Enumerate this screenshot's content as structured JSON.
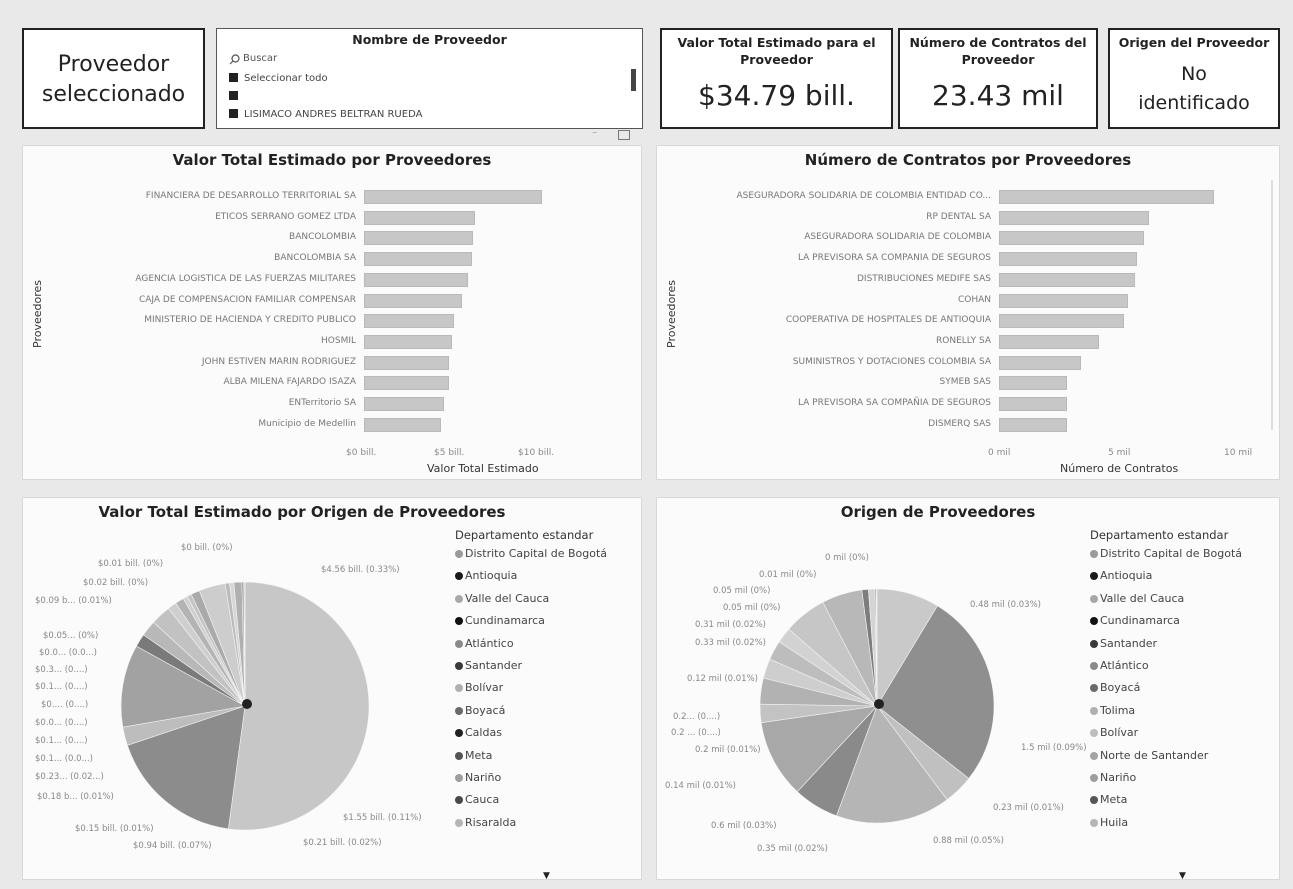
{
  "selected_provider_card": {
    "label": "Proveedor seleccionado"
  },
  "slicer": {
    "title": "Nombre de Proveedor",
    "search_placeholder": "Buscar",
    "select_all": "Seleccionar todo",
    "blank_option": "",
    "provider_option": "LISIMACO ANDRES BELTRAN RUEDA"
  },
  "kpis": {
    "valor": {
      "title": "Valor Total Estimado para el Proveedor",
      "value": "$34.79 bill."
    },
    "contratos": {
      "title": "Número de Contratos del Proveedor",
      "value": "23.43 mil"
    },
    "origen": {
      "title": "Origen del Proveedor",
      "value": "No identificado"
    }
  },
  "bar_valor": {
    "title": "Valor Total Estimado por Proveedores",
    "ylabel": "Proveedores",
    "xlabel": "Valor Total Estimado",
    "ticks": [
      "$0 bill.",
      "$5 bill.",
      "$10 bill."
    ]
  },
  "bar_contratos": {
    "title": "Número de Contratos por Proveedores",
    "ylabel": "Proveedores",
    "xlabel": "Número de Contratos",
    "ticks": [
      "0 mil",
      "5 mil",
      "10 mil"
    ]
  },
  "pie_valor": {
    "title": "Valor Total Estimado por Origen de Proveedores",
    "legend_title": "Departamento estandar",
    "legend": [
      {
        "name": "Distrito Capital de Bogotá",
        "color": "#9a9a9a"
      },
      {
        "name": "Antioquia",
        "color": "#1a1a1a"
      },
      {
        "name": "Valle del Cauca",
        "color": "#a8a8a8"
      },
      {
        "name": "Cundinamarca",
        "color": "#111111"
      },
      {
        "name": "Atlántico",
        "color": "#8a8a8a"
      },
      {
        "name": "Santander",
        "color": "#3a3a3a"
      },
      {
        "name": "Bolívar",
        "color": "#b0b0b0"
      },
      {
        "name": "Boyacá",
        "color": "#6a6a6a"
      },
      {
        "name": "Caldas",
        "color": "#222222"
      },
      {
        "name": "Meta",
        "color": "#555555"
      },
      {
        "name": "Nariño",
        "color": "#9e9e9e"
      },
      {
        "name": "Cauca",
        "color": "#4a4a4a"
      },
      {
        "name": "Risaralda",
        "color": "#b5b5b5"
      }
    ],
    "labels": [
      "$0 bill.\n(0%)",
      "$0.01 bill. (0%)",
      "$0.02 bill. (0%)",
      "$0.09 b... (0.01%)",
      "$0.05... (0%)",
      "$0.0... (0.0...)",
      "$0.3... (0....)",
      "$0.1... (0....)",
      "$0.... (0....)",
      "$0.0... (0....)",
      "$0.1... (0....)",
      "$0.1... (0.0...)",
      "$0.23... (0.02...)",
      "$0.18 b... (0.01%)",
      "$0.15 bill. (0.01%)",
      "$0.94 bill. (0.07%)",
      "$0.21 bill. (0.02%)",
      "$1.55 bill. (0.11%)",
      "$4.56 bill. (0.33%)"
    ]
  },
  "pie_contratos": {
    "title": "Origen de Proveedores",
    "legend_title": "Departamento estandar",
    "legend": [
      {
        "name": "Distrito Capital de Bogotá",
        "color": "#9a9a9a"
      },
      {
        "name": "Antioquia",
        "color": "#1a1a1a"
      },
      {
        "name": "Valle del Cauca",
        "color": "#a8a8a8"
      },
      {
        "name": "Cundinamarca",
        "color": "#111111"
      },
      {
        "name": "Santander",
        "color": "#3a3a3a"
      },
      {
        "name": "Atlántico",
        "color": "#8a8a8a"
      },
      {
        "name": "Boyacá",
        "color": "#6a6a6a"
      },
      {
        "name": "Tolima",
        "color": "#b0b0b0"
      },
      {
        "name": "Bolívar",
        "color": "#bdbdbd"
      },
      {
        "name": "Norte de Santander",
        "color": "#a4a4a4"
      },
      {
        "name": "Nariño",
        "color": "#9e9e9e"
      },
      {
        "name": "Meta",
        "color": "#555555"
      },
      {
        "name": "Huila",
        "color": "#b5b5b5"
      }
    ],
    "labels": [
      "0 mil\n(0%)",
      "0.01 mil (0%)",
      "0.05 mil (0%)",
      "0.05 mil (0%)",
      "0.31 mil (0.02%)",
      "0.33 mil\n(0.02%)",
      "0.12 mil\n(0.01%)",
      "0.2... (0....)",
      "0.2 ... (0....)",
      "0.2 mil\n(0.01%)",
      "0.14 mil (0.01%)",
      "0.6 mil (0.03%)",
      "0.35 mil (0.02%)",
      "0.88 mil (0.05%)",
      "0.23 mil (0.01%)",
      "1.5 mil\n(0.09%)",
      "0.48 mil (0.03%)"
    ]
  },
  "chart_data": [
    {
      "type": "bar",
      "title": "Valor Total Estimado por Proveedores",
      "xlabel": "Valor Total Estimado",
      "ylabel": "Proveedores",
      "xlim": [
        0,
        13
      ],
      "unit": "bill.",
      "categories": [
        "FINANCIERA DE DESARROLLO TERRITORIAL SA",
        "ETICOS SERRANO GOMEZ LTDA",
        "BANCOLOMBIA",
        "BANCOLOMBIA SA",
        "AGENCIA LOGISTICA DE LAS FUERZAS MILITARES",
        "CAJA DE COMPENSACION FAMILIAR COMPENSAR",
        "MINISTERIO DE HACIENDA Y CREDITO PUBLICO",
        "HOSMIL",
        "JOHN ESTIVEN MARIN RODRIGUEZ",
        "ALBA MILENA FAJARDO ISAZA",
        "ENTerritorio SA",
        "Municipio de Medellin"
      ],
      "values": [
        10.9,
        6.8,
        6.7,
        6.6,
        6.4,
        6.0,
        5.5,
        5.4,
        5.2,
        5.2,
        4.9,
        4.7
      ]
    },
    {
      "type": "bar",
      "title": "Número de Contratos por Proveedores",
      "xlabel": "Número de Contratos",
      "ylabel": "Proveedores",
      "xlim": [
        0,
        12
      ],
      "unit": "mil",
      "categories": [
        "ASEGURADORA SOLIDARIA DE COLOMBIA ENTIDAD CO...",
        "RP DENTAL SA",
        "ASEGURADORA SOLIDARIA DE COLOMBIA",
        "LA PREVISORA SA COMPANIA DE SEGUROS",
        "DISTRIBUCIONES MEDIFE SAS",
        "COHAN",
        "COOPERATIVA DE HOSPITALES DE ANTIOQUIA",
        "RONELLY SA",
        "SUMINISTROS Y DOTACIONES COLOMBIA SA",
        "SYMEB SAS",
        "LA PREVISORA SA COMPAÑIA DE SEGUROS",
        "DISMERQ SAS"
      ],
      "values": [
        9.5,
        6.6,
        6.4,
        6.1,
        6.0,
        5.7,
        5.5,
        4.4,
        3.6,
        3.0,
        3.0,
        3.0
      ]
    },
    {
      "type": "pie",
      "title": "Valor Total Estimado por Origen de Proveedores",
      "slices": [
        {
          "label": "$4.56 bill. (0.33%)",
          "value": 4.56,
          "color": "#c7c7c7"
        },
        {
          "label": "$1.55 bill. (0.11%)",
          "value": 1.55,
          "color": "#8c8c8c"
        },
        {
          "label": "$0.21 bill. (0.02%)",
          "value": 0.21,
          "color": "#bdbdbd"
        },
        {
          "label": "$0.94 bill. (0.07%)",
          "value": 0.94,
          "color": "#a2a2a2"
        },
        {
          "label": "$0.15 bill. (0.01%)",
          "value": 0.15,
          "color": "#7a7a7a"
        },
        {
          "label": "$0.18 b... (0.01%)",
          "value": 0.18,
          "color": "#b8b8b8"
        },
        {
          "label": "$0.23... (0.02...)",
          "value": 0.23,
          "color": "#c2c2c2"
        },
        {
          "label": "$0.1... (0.0...)",
          "value": 0.1,
          "color": "#cfcfcf"
        },
        {
          "label": "$0.1... (0....)",
          "value": 0.1,
          "color": "#b4b4b4"
        },
        {
          "label": "$0.0... (0....)",
          "value": 0.05,
          "color": "#d0d0d0"
        },
        {
          "label": "$0.... (0....)",
          "value": 0.05,
          "color": "#c4c4c4"
        },
        {
          "label": "$0.1... (0....)",
          "value": 0.1,
          "color": "#aaaaaa"
        },
        {
          "label": "$0.3... (0....)",
          "value": 0.3,
          "color": "#cdcdcd"
        },
        {
          "label": "$0.0... (0.0...)",
          "value": 0.05,
          "color": "#bbbbbb"
        },
        {
          "label": "$0.05... (0%)",
          "value": 0.05,
          "color": "#d6d6d6"
        },
        {
          "label": "$0.09 b... (0.01%)",
          "value": 0.09,
          "color": "#b0b0b0"
        },
        {
          "label": "$0.02 bill. (0%)",
          "value": 0.02,
          "color": "#8f8f8f"
        },
        {
          "label": "$0.01 bill. (0%)",
          "value": 0.01,
          "color": "#6e6e6e"
        },
        {
          "label": "$0 bill. (0%)",
          "value": 0.005,
          "color": "#999999"
        }
      ]
    },
    {
      "type": "pie",
      "title": "Origen de Proveedores",
      "slices": [
        {
          "label": "0.48 mil (0.03%)",
          "value": 0.48,
          "color": "#c9c9c9"
        },
        {
          "label": "1.5 mil (0.09%)",
          "value": 1.5,
          "color": "#8f8f8f"
        },
        {
          "label": "0.23 mil (0.01%)",
          "value": 0.23,
          "color": "#c0c0c0"
        },
        {
          "label": "0.88 mil (0.05%)",
          "value": 0.88,
          "color": "#b5b5b5"
        },
        {
          "label": "0.35 mil (0.02%)",
          "value": 0.35,
          "color": "#8a8a8a"
        },
        {
          "label": "0.6 mil (0.03%)",
          "value": 0.6,
          "color": "#a8a8a8"
        },
        {
          "label": "0.14 mil (0.01%)",
          "value": 0.14,
          "color": "#c3c3c3"
        },
        {
          "label": "0.2 mil (0.01%)",
          "value": 0.2,
          "color": "#b2b2b2"
        },
        {
          "label": "0.2 ... (0....)",
          "value": 0.15,
          "color": "#cecece"
        },
        {
          "label": "0.2... (0....)",
          "value": 0.15,
          "color": "#bdbdbd"
        },
        {
          "label": "0.12 mil (0.01%)",
          "value": 0.12,
          "color": "#d2d2d2"
        },
        {
          "label": "0.33 mil (0.02%)",
          "value": 0.33,
          "color": "#c6c6c6"
        },
        {
          "label": "0.31 mil (0.02%)",
          "value": 0.31,
          "color": "#b8b8b8"
        },
        {
          "label": "0.05 mil (0%)",
          "value": 0.05,
          "color": "#7d7d7d"
        },
        {
          "label": "0.05 mil (0%)",
          "value": 0.05,
          "color": "#d4d4d4"
        },
        {
          "label": "0.01 mil (0%)",
          "value": 0.01,
          "color": "#9c9c9c"
        },
        {
          "label": "0 mil (0%)",
          "value": 0.005,
          "color": "#6c6c6c"
        }
      ]
    }
  ]
}
